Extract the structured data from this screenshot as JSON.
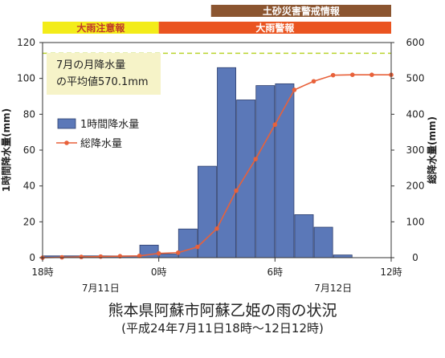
{
  "chart_data": {
    "type": "bar",
    "title": "熊本県阿蘇市阿蘇乙姫の雨の状況",
    "subtitle": "(平成24年7月11日18時〜12日12時)",
    "ylabel": "1時間降水量(mm)",
    "y2label": "総降水量(mm)",
    "ylim": [
      0,
      120
    ],
    "y2lim": [
      0,
      600
    ],
    "yticks": [
      "0",
      "20",
      "40",
      "60",
      "80",
      "100",
      "120"
    ],
    "y2ticks": [
      "0",
      "100",
      "200",
      "300",
      "400",
      "500",
      "600"
    ],
    "xtick_labels": [
      "18時",
      "0時",
      "6時",
      "12時"
    ],
    "date_labels": [
      "7月11日",
      "7月12日"
    ],
    "categories": [
      "18",
      "19",
      "20",
      "21",
      "22",
      "23",
      "0",
      "1",
      "2",
      "3",
      "4",
      "5",
      "6",
      "7",
      "8",
      "9",
      "10",
      "11"
    ],
    "series": [
      {
        "name": "1時間降水量",
        "type": "bar",
        "axis": "left",
        "color": "#5b78b8",
        "values": [
          1,
          1,
          1,
          1,
          1,
          7,
          2,
          16,
          51,
          106,
          88,
          96,
          97,
          24,
          17,
          1.5,
          0,
          0
        ]
      },
      {
        "name": "総降水量",
        "type": "line",
        "axis": "right",
        "color": "#e8613a",
        "x": [
          0,
          1,
          2,
          3,
          4,
          5,
          6,
          7,
          8,
          9,
          10,
          11,
          12,
          13,
          14,
          15,
          16,
          17,
          18
        ],
        "values": [
          0,
          1,
          2,
          3,
          4,
          5,
          12,
          14,
          30,
          81,
          187,
          275,
          371,
          468,
          492,
          509,
          510,
          510,
          510
        ]
      }
    ],
    "reference_line": {
      "axis": "right",
      "value": 570.1,
      "style": "dashed",
      "color": "#b9d42e"
    },
    "reference_label": [
      "7月の月降水量",
      "の平均値570.1mm"
    ],
    "legend": {
      "placement": "upper-left"
    },
    "status_bands": [
      {
        "label": "大雨注意報",
        "start": 0,
        "end": 6,
        "color": "#f3ec19",
        "text_color": "#c0392b"
      },
      {
        "label": "大雨警報",
        "start": 6,
        "end": 18,
        "color": "#ea5420",
        "text_color": "#ffffff"
      },
      {
        "label": "土砂災害警戒情報",
        "start": 8.7,
        "end": 18,
        "color": "#8b5530",
        "text_color": "#ffffff"
      }
    ],
    "grid": false
  }
}
